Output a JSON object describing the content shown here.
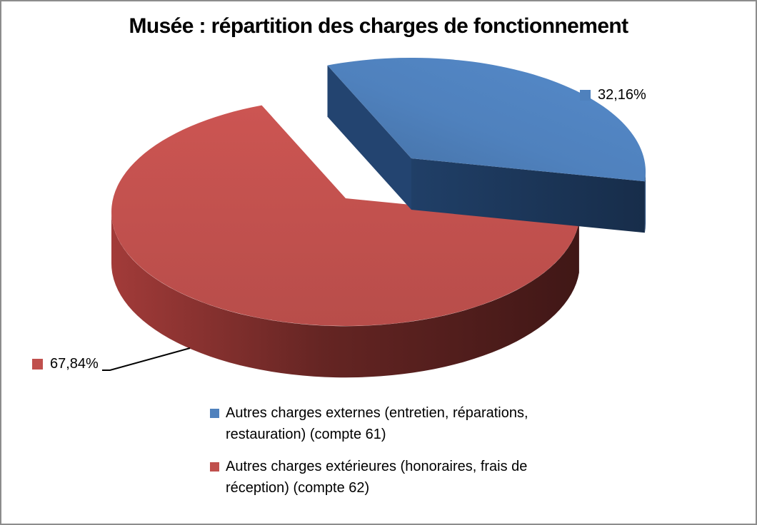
{
  "frame": {
    "border_color": "#8c8c8c",
    "background": "#ffffff"
  },
  "chart_data": {
    "type": "pie",
    "is_3d": true,
    "exploded": true,
    "title": "Musée : répartition des charges de fonctionnement",
    "legend_position": "bottom",
    "data_label_format": "percentage with comma decimal separator",
    "start_angle_deg": -21,
    "series": [
      {
        "name": "Autres charges externes (entretien, réparations, restauration) (compte 61)",
        "value_pct": 32.16,
        "label": "32,16%",
        "color": "#4F81BD",
        "side_color": "#1E3A5F",
        "exploded": true
      },
      {
        "name": "Autres charges extérieures (honoraires, frais de réception) (compte 62)",
        "value_pct": 67.84,
        "label": "67,84%",
        "color": "#C0504D",
        "side_color": "#7B2D2B",
        "exploded": false
      }
    ],
    "leader_line": {
      "color": "#000000",
      "from_label": "67,84%"
    }
  }
}
